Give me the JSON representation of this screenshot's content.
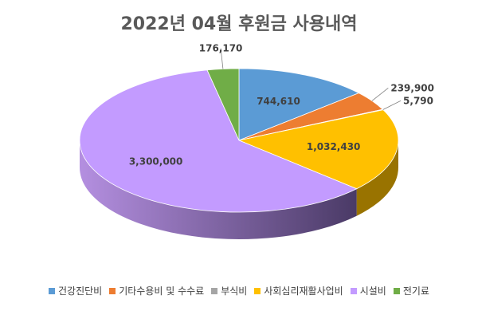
{
  "chart_data": {
    "type": "pie",
    "title": "2022년 04월 후원금 사용내역",
    "categories": [
      "건강진단비",
      "기타수용비 및 수수료",
      "부식비",
      "사회심리재활사업비",
      "시설비",
      "전기료"
    ],
    "values": [
      744610,
      239900,
      5790,
      1032430,
      3300000,
      176170
    ],
    "value_labels": [
      "744,610",
      "239,900",
      "5,790",
      "1,032,430",
      "3,300,000",
      "176,170"
    ],
    "colors": [
      "#5B9BD5",
      "#ED7D31",
      "#A5A5A5",
      "#FFC000",
      "#C39BFF",
      "#70AD47"
    ],
    "legend_position": "bottom"
  }
}
